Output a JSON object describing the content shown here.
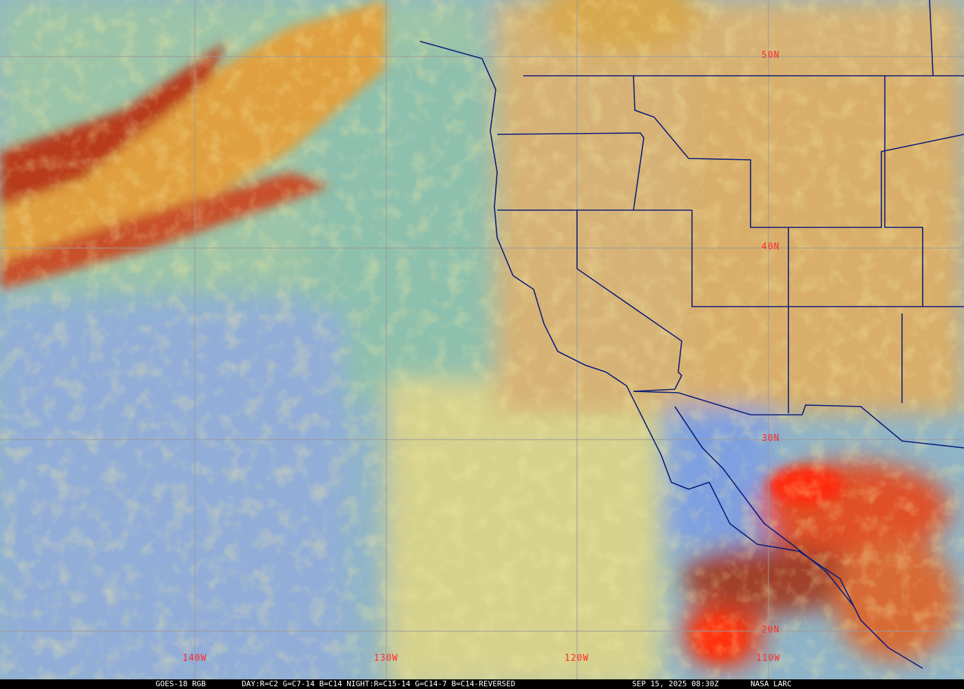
{
  "product": "GOES-18 RGB",
  "recipe": "DAY:R=C2 G=C7-14 B=C14 NIGHT:R=C15-14 G=C14-7 B=C14-REVERSED",
  "timestamp": "SEP 15, 2025 08:30Z",
  "credit": "NASA LARC",
  "latitude_labels": [
    "50N",
    "40N",
    "30N",
    "20N"
  ],
  "longitude_labels": [
    "140W",
    "130W",
    "120W",
    "110W"
  ],
  "colors": {
    "grid": "#9a9a9a",
    "labels": "#ff2a2a",
    "borders": "#0a1a7a",
    "footer_bg": "#000000"
  }
}
